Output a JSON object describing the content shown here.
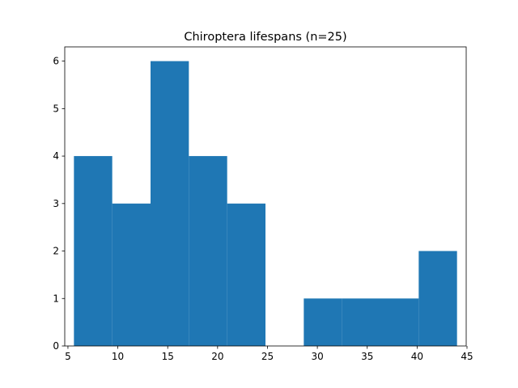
{
  "chart_data": {
    "type": "bar",
    "title": "Chiroptera lifespans (n=25)",
    "xlabel": "",
    "ylabel": "",
    "bin_edges": [
      5.6,
      9.44,
      13.28,
      17.12,
      20.96,
      24.8,
      28.64,
      32.48,
      36.32,
      40.16,
      44.0
    ],
    "counts": [
      4,
      3,
      6,
      4,
      3,
      0,
      1,
      1,
      1,
      2
    ],
    "xlim": [
      4.68,
      44.92
    ],
    "ylim": [
      0,
      6.3
    ],
    "xticks": [
      5,
      10,
      15,
      20,
      25,
      30,
      35,
      40,
      45
    ],
    "yticks": [
      0,
      1,
      2,
      3,
      4,
      5,
      6
    ],
    "grid": false,
    "bar_color": "#1f77b4"
  }
}
